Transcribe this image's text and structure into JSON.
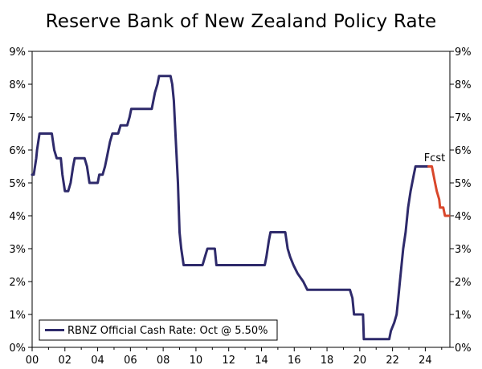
{
  "chart_data": {
    "type": "line",
    "title": "Reserve Bank of New Zealand Policy Rate",
    "x_range": [
      2000,
      2025.5
    ],
    "ylim": [
      0,
      9
    ],
    "y_ticks": [
      "0%",
      "1%",
      "2%",
      "3%",
      "4%",
      "5%",
      "6%",
      "7%",
      "8%",
      "9%"
    ],
    "x_ticks": [
      {
        "label": "00",
        "value": 2000
      },
      {
        "label": "02",
        "value": 2002
      },
      {
        "label": "04",
        "value": 2004
      },
      {
        "label": "06",
        "value": 2006
      },
      {
        "label": "08",
        "value": 2008
      },
      {
        "label": "10",
        "value": 2010
      },
      {
        "label": "12",
        "value": 2012
      },
      {
        "label": "14",
        "value": 2014
      },
      {
        "label": "16",
        "value": 2016
      },
      {
        "label": "18",
        "value": 2018
      },
      {
        "label": "20",
        "value": 2020
      },
      {
        "label": "22",
        "value": 2022
      },
      {
        "label": "24",
        "value": 2024
      }
    ],
    "grid": false,
    "legend": {
      "position": "bottom-left",
      "label": "RBNZ Official Cash Rate: Oct @ 5.50%"
    },
    "annotation": "Fcst",
    "series": [
      {
        "name": "RBNZ Official Cash Rate: Oct @ 5.50%",
        "color": "#2E2A6B",
        "points": [
          [
            2000.0,
            5.25
          ],
          [
            2000.1,
            5.25
          ],
          [
            2000.25,
            5.75
          ],
          [
            2000.3,
            6.0
          ],
          [
            2000.45,
            6.5
          ],
          [
            2000.5,
            6.5
          ],
          [
            2001.2,
            6.5
          ],
          [
            2001.35,
            6.0
          ],
          [
            2001.5,
            5.75
          ],
          [
            2001.75,
            5.75
          ],
          [
            2001.85,
            5.25
          ],
          [
            2002.0,
            4.75
          ],
          [
            2002.2,
            4.75
          ],
          [
            2002.35,
            5.0
          ],
          [
            2002.5,
            5.5
          ],
          [
            2002.6,
            5.75
          ],
          [
            2003.2,
            5.75
          ],
          [
            2003.35,
            5.5
          ],
          [
            2003.5,
            5.0
          ],
          [
            2004.0,
            5.0
          ],
          [
            2004.1,
            5.25
          ],
          [
            2004.3,
            5.25
          ],
          [
            2004.45,
            5.5
          ],
          [
            2004.55,
            5.75
          ],
          [
            2004.75,
            6.25
          ],
          [
            2004.9,
            6.5
          ],
          [
            2005.25,
            6.5
          ],
          [
            2005.4,
            6.75
          ],
          [
            2005.8,
            6.75
          ],
          [
            2005.95,
            7.0
          ],
          [
            2006.05,
            7.25
          ],
          [
            2007.3,
            7.25
          ],
          [
            2007.4,
            7.5
          ],
          [
            2007.5,
            7.75
          ],
          [
            2007.65,
            8.0
          ],
          [
            2007.75,
            8.25
          ],
          [
            2008.45,
            8.25
          ],
          [
            2008.55,
            8.0
          ],
          [
            2008.65,
            7.5
          ],
          [
            2008.75,
            6.5
          ],
          [
            2008.9,
            5.0
          ],
          [
            2009.0,
            3.5
          ],
          [
            2009.1,
            3.0
          ],
          [
            2009.25,
            2.5
          ],
          [
            2010.4,
            2.5
          ],
          [
            2010.55,
            2.75
          ],
          [
            2010.7,
            3.0
          ],
          [
            2011.15,
            3.0
          ],
          [
            2011.25,
            2.5
          ],
          [
            2014.2,
            2.5
          ],
          [
            2014.3,
            2.75
          ],
          [
            2014.45,
            3.25
          ],
          [
            2014.55,
            3.5
          ],
          [
            2015.45,
            3.5
          ],
          [
            2015.6,
            3.0
          ],
          [
            2015.75,
            2.75
          ],
          [
            2015.95,
            2.5
          ],
          [
            2016.2,
            2.25
          ],
          [
            2016.55,
            2.0
          ],
          [
            2016.8,
            1.75
          ],
          [
            2019.4,
            1.75
          ],
          [
            2019.55,
            1.5
          ],
          [
            2019.65,
            1.0
          ],
          [
            2020.2,
            1.0
          ],
          [
            2020.25,
            0.25
          ],
          [
            2021.8,
            0.25
          ],
          [
            2021.9,
            0.5
          ],
          [
            2022.1,
            0.75
          ],
          [
            2022.25,
            1.0
          ],
          [
            2022.35,
            1.5
          ],
          [
            2022.45,
            2.0
          ],
          [
            2022.65,
            3.0
          ],
          [
            2022.8,
            3.5
          ],
          [
            2022.95,
            4.25
          ],
          [
            2023.1,
            4.75
          ],
          [
            2023.3,
            5.25
          ],
          [
            2023.4,
            5.5
          ],
          [
            2024.2,
            5.5
          ]
        ]
      },
      {
        "name": "Fcst",
        "color": "#D9472B",
        "points": [
          [
            2024.2,
            5.5
          ],
          [
            2024.4,
            5.5
          ],
          [
            2024.5,
            5.25
          ],
          [
            2024.6,
            5.0
          ],
          [
            2024.7,
            4.75
          ],
          [
            2024.85,
            4.5
          ],
          [
            2024.9,
            4.25
          ],
          [
            2025.1,
            4.25
          ],
          [
            2025.2,
            4.0
          ],
          [
            2025.45,
            4.0
          ]
        ]
      }
    ]
  }
}
